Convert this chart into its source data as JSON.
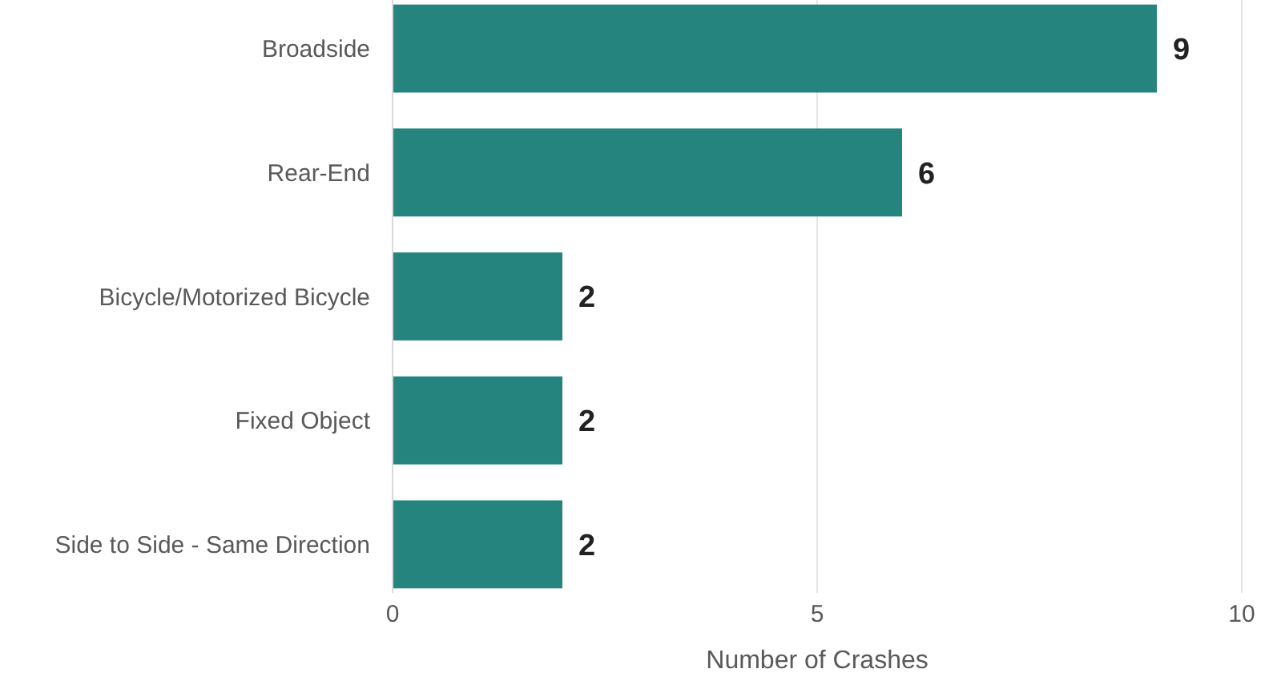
{
  "chart_data": {
    "type": "bar",
    "orientation": "horizontal",
    "xlabel": "Number of Crashes",
    "categories": [
      "Broadside",
      "Rear-End",
      "Bicycle/Motorized Bicycle",
      "Fixed Object",
      "Side to Side - Same Direction"
    ],
    "values": [
      9,
      6,
      2,
      2,
      2
    ],
    "color": "#26847f",
    "xlim": [
      0,
      10
    ],
    "xticks": [
      0,
      5,
      10
    ],
    "grid": "x",
    "data_labels": true
  }
}
